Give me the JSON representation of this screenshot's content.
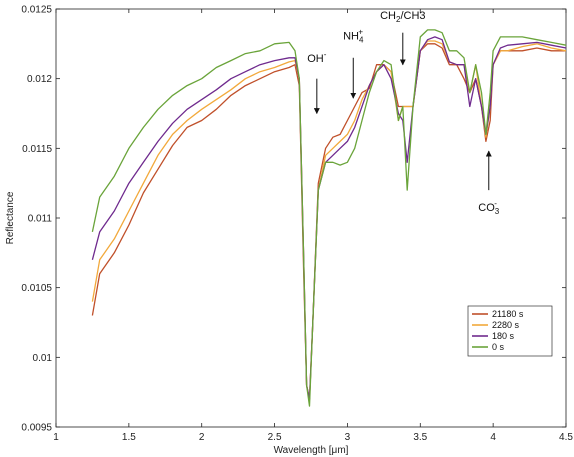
{
  "chart_data": {
    "type": "line",
    "title": "",
    "xlabel": "Wavelength [μm]",
    "ylabel": "Reflectance",
    "xlim": [
      1,
      4.5
    ],
    "ylim": [
      0.0095,
      0.0125
    ],
    "x_ticks": [
      1,
      1.5,
      2,
      2.5,
      3,
      3.5,
      4,
      4.5
    ],
    "x_tick_labels": [
      "1",
      "1.5",
      "2",
      "2.5",
      "3",
      "3.5",
      "4",
      "4.5"
    ],
    "y_ticks": [
      0.0095,
      0.01,
      0.0105,
      0.011,
      0.0115,
      0.012,
      0.0125
    ],
    "y_tick_labels": [
      "0.0095",
      "0.01",
      "0.0105",
      "0.011",
      "0.0115",
      "0.012",
      "0.0125"
    ],
    "grid": false,
    "legend_position": "bottom-right",
    "annotations": [
      {
        "text": "OH",
        "sup": "-",
        "sub": "",
        "suffix": "",
        "x": 2.79,
        "y": 0.01212,
        "arrow_from": 0.012,
        "arrow_to": 0.01175
      },
      {
        "text": "NH",
        "sup": "+",
        "sub": "4",
        "suffix": "",
        "x": 3.04,
        "y": 0.01228,
        "arrow_from": 0.01215,
        "arrow_to": 0.01186
      },
      {
        "text": "CH",
        "sub": "2",
        "sup": "",
        "suffix": "/CH3",
        "x": 3.38,
        "y": 0.01243,
        "arrow_from": 0.01233,
        "arrow_to": 0.0121
      },
      {
        "text": "CO",
        "sup": "-",
        "sub": "3",
        "suffix": "",
        "x": 3.97,
        "y": 0.01105,
        "arrow_from": 0.0112,
        "arrow_to": 0.01148
      }
    ],
    "series": [
      {
        "name": "21180 s",
        "color": "#c0502a",
        "x": [
          1.25,
          1.3,
          1.4,
          1.5,
          1.6,
          1.7,
          1.8,
          1.9,
          2.0,
          2.1,
          2.2,
          2.3,
          2.4,
          2.5,
          2.6,
          2.64,
          2.67,
          2.7,
          2.72,
          2.74,
          2.76,
          2.8,
          2.85,
          2.9,
          2.95,
          3.0,
          3.05,
          3.1,
          3.15,
          3.2,
          3.25,
          3.3,
          3.35,
          3.38,
          3.41,
          3.45,
          3.5,
          3.55,
          3.6,
          3.65,
          3.7,
          3.75,
          3.8,
          3.84,
          3.88,
          3.92,
          3.95,
          3.98,
          4.0,
          4.05,
          4.1,
          4.2,
          4.3,
          4.4,
          4.5
        ],
        "y": [
          0.0103,
          0.0106,
          0.01075,
          0.01095,
          0.01118,
          0.01135,
          0.01152,
          0.01165,
          0.0117,
          0.01178,
          0.01188,
          0.01195,
          0.012,
          0.01205,
          0.01208,
          0.0121,
          0.01195,
          0.0106,
          0.0098,
          0.0097,
          0.0102,
          0.01125,
          0.0115,
          0.01158,
          0.0116,
          0.0117,
          0.0118,
          0.0119,
          0.01193,
          0.0121,
          0.0121,
          0.01205,
          0.0118,
          0.0118,
          0.0118,
          0.0118,
          0.0122,
          0.01225,
          0.01225,
          0.01222,
          0.0121,
          0.0121,
          0.012,
          0.0119,
          0.012,
          0.0118,
          0.01155,
          0.0117,
          0.0121,
          0.0122,
          0.0122,
          0.0122,
          0.01222,
          0.0122,
          0.0122
        ]
      },
      {
        "name": "2280 s",
        "color": "#f2a93b",
        "x": [
          1.25,
          1.3,
          1.4,
          1.5,
          1.6,
          1.7,
          1.8,
          1.9,
          2.0,
          2.1,
          2.2,
          2.3,
          2.4,
          2.5,
          2.6,
          2.64,
          2.67,
          2.7,
          2.72,
          2.74,
          2.76,
          2.8,
          2.85,
          2.9,
          2.95,
          3.0,
          3.05,
          3.1,
          3.15,
          3.2,
          3.25,
          3.3,
          3.35,
          3.38,
          3.41,
          3.45,
          3.5,
          3.55,
          3.6,
          3.65,
          3.7,
          3.75,
          3.8,
          3.84,
          3.88,
          3.92,
          3.95,
          3.98,
          4.0,
          4.05,
          4.1,
          4.2,
          4.3,
          4.4,
          4.5
        ],
        "y": [
          0.0104,
          0.0107,
          0.01085,
          0.01105,
          0.01125,
          0.01145,
          0.0116,
          0.0117,
          0.01178,
          0.01185,
          0.01192,
          0.012,
          0.01205,
          0.01208,
          0.01212,
          0.01213,
          0.012,
          0.0107,
          0.0098,
          0.0097,
          0.0102,
          0.0112,
          0.01145,
          0.0115,
          0.01155,
          0.0116,
          0.0117,
          0.01185,
          0.01195,
          0.01205,
          0.0121,
          0.01205,
          0.0117,
          0.0118,
          0.0118,
          0.0118,
          0.0122,
          0.01227,
          0.01227,
          0.01225,
          0.01212,
          0.0121,
          0.0121,
          0.0119,
          0.0121,
          0.0118,
          0.01158,
          0.0118,
          0.0121,
          0.0122,
          0.0122,
          0.01223,
          0.01225,
          0.01222,
          0.0122
        ]
      },
      {
        "name": "180 s",
        "color": "#6f2a8e",
        "x": [
          1.25,
          1.3,
          1.4,
          1.5,
          1.6,
          1.7,
          1.8,
          1.9,
          2.0,
          2.1,
          2.2,
          2.3,
          2.4,
          2.5,
          2.6,
          2.64,
          2.67,
          2.7,
          2.72,
          2.74,
          2.76,
          2.8,
          2.85,
          2.9,
          2.95,
          3.0,
          3.05,
          3.1,
          3.15,
          3.2,
          3.25,
          3.3,
          3.35,
          3.38,
          3.41,
          3.45,
          3.5,
          3.55,
          3.6,
          3.65,
          3.7,
          3.75,
          3.8,
          3.84,
          3.88,
          3.92,
          3.95,
          3.98,
          4.0,
          4.05,
          4.1,
          4.2,
          4.3,
          4.4,
          4.5
        ],
        "y": [
          0.0107,
          0.0109,
          0.01105,
          0.01125,
          0.0114,
          0.01155,
          0.01168,
          0.01178,
          0.01185,
          0.01192,
          0.012,
          0.01205,
          0.0121,
          0.01213,
          0.01215,
          0.01215,
          0.012,
          0.0107,
          0.0098,
          0.0097,
          0.0102,
          0.0112,
          0.0114,
          0.01145,
          0.0115,
          0.01155,
          0.01165,
          0.0118,
          0.01195,
          0.01205,
          0.0121,
          0.012,
          0.01175,
          0.0117,
          0.0114,
          0.0118,
          0.0122,
          0.01228,
          0.0123,
          0.01228,
          0.01212,
          0.0121,
          0.0121,
          0.0118,
          0.012,
          0.0118,
          0.0116,
          0.0118,
          0.0121,
          0.01222,
          0.01224,
          0.01225,
          0.01226,
          0.01224,
          0.01222
        ]
      },
      {
        "name": "0 s",
        "color": "#6aa43a",
        "x": [
          1.25,
          1.3,
          1.4,
          1.5,
          1.6,
          1.7,
          1.8,
          1.9,
          2.0,
          2.1,
          2.2,
          2.3,
          2.4,
          2.5,
          2.6,
          2.64,
          2.67,
          2.7,
          2.72,
          2.74,
          2.76,
          2.8,
          2.85,
          2.9,
          2.95,
          3.0,
          3.05,
          3.1,
          3.15,
          3.2,
          3.25,
          3.3,
          3.35,
          3.38,
          3.41,
          3.45,
          3.5,
          3.55,
          3.6,
          3.65,
          3.7,
          3.75,
          3.8,
          3.84,
          3.88,
          3.92,
          3.95,
          3.98,
          4.0,
          4.05,
          4.1,
          4.2,
          4.3,
          4.4,
          4.5
        ],
        "y": [
          0.0109,
          0.01115,
          0.0113,
          0.0115,
          0.01165,
          0.01178,
          0.01188,
          0.01195,
          0.012,
          0.01208,
          0.01213,
          0.01218,
          0.0122,
          0.01225,
          0.01226,
          0.0122,
          0.012,
          0.0107,
          0.0098,
          0.00965,
          0.0102,
          0.0112,
          0.0114,
          0.0114,
          0.01138,
          0.0114,
          0.0115,
          0.0117,
          0.0119,
          0.01205,
          0.01213,
          0.0121,
          0.0117,
          0.0118,
          0.0112,
          0.0118,
          0.0123,
          0.01235,
          0.01235,
          0.01233,
          0.0122,
          0.0122,
          0.01215,
          0.0119,
          0.0121,
          0.0119,
          0.0116,
          0.0119,
          0.0122,
          0.0123,
          0.0123,
          0.0123,
          0.01228,
          0.01226,
          0.01224
        ]
      }
    ]
  }
}
